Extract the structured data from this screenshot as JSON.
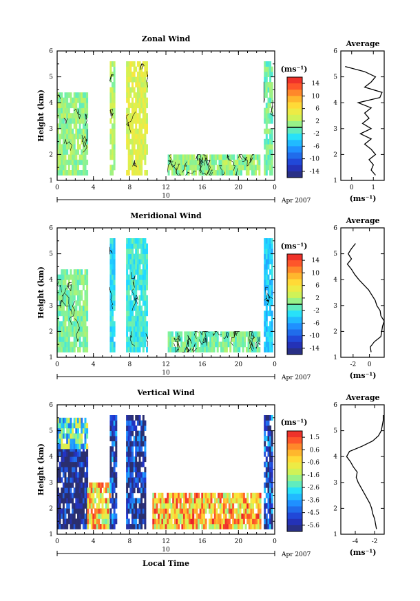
{
  "chart_data": [
    {
      "type": "heatmap",
      "title": "Zonal Wind",
      "xlabel": "",
      "ylabel": "Height (km)",
      "xlim": [
        0,
        24
      ],
      "ylim": [
        1,
        6
      ],
      "x_ticks": [
        "0",
        "4",
        "8",
        "12",
        "16",
        "20",
        "0"
      ],
      "y_ticks": [
        "1",
        "2",
        "3",
        "4",
        "5",
        "6"
      ],
      "date_label": "10",
      "month_label": "Apr 2007",
      "colorbar": {
        "unit": "(ms⁻¹)",
        "ticks": [
          "14",
          "10",
          "6",
          "2",
          "-2",
          "-6",
          "-10",
          "-14"
        ],
        "range": [
          -16,
          16
        ],
        "marker": 0
      },
      "value_range": [
        -8,
        10
      ],
      "data_blocks": [
        {
          "t": [
            0,
            3.3
          ],
          "h": [
            1.2,
            4.3
          ],
          "mean": 1
        },
        {
          "t": [
            5.8,
            6.3
          ],
          "h": [
            1.2,
            5.5
          ],
          "mean": 2
        },
        {
          "t": [
            7.6,
            10.0
          ],
          "h": [
            1.2,
            5.5
          ],
          "mean": 4
        },
        {
          "t": [
            12.2,
            22.4
          ],
          "h": [
            1.2,
            2.0
          ],
          "mean": 1
        },
        {
          "t": [
            22.8,
            23.8
          ],
          "h": [
            1.2,
            5.5
          ],
          "mean": 0
        }
      ],
      "profile": {
        "title": "Average",
        "xlabel": "(ms⁻¹)",
        "xlim": [
          -0.5,
          1.5
        ],
        "x_ticks": [
          "0",
          "1"
        ],
        "y_ticks": [
          "1",
          "2",
          "3",
          "4",
          "5",
          "6"
        ],
        "ylim": [
          1,
          6
        ],
        "height": [
          1.2,
          1.4,
          1.6,
          1.8,
          2.0,
          2.2,
          2.4,
          2.6,
          2.8,
          3.0,
          3.2,
          3.4,
          3.6,
          3.8,
          4.0,
          4.2,
          4.4,
          4.6,
          4.8,
          5.0,
          5.2,
          5.4
        ],
        "wind": [
          1.1,
          0.9,
          1.0,
          0.8,
          1.1,
          0.9,
          0.6,
          0.9,
          0.4,
          0.9,
          0.5,
          0.8,
          0.6,
          0.9,
          0.3,
          1.3,
          1.4,
          0.6,
          0.9,
          1.1,
          0.6,
          -0.3
        ]
      }
    },
    {
      "type": "heatmap",
      "title": "Meridional Wind",
      "xlabel": "",
      "ylabel": "Height (km)",
      "xlim": [
        0,
        24
      ],
      "ylim": [
        1,
        6
      ],
      "x_ticks": [
        "0",
        "4",
        "8",
        "12",
        "16",
        "20",
        "0"
      ],
      "y_ticks": [
        "1",
        "2",
        "3",
        "4",
        "5",
        "6"
      ],
      "date_label": "10",
      "month_label": "Apr 2007",
      "colorbar": {
        "unit": "(ms⁻¹)",
        "ticks": [
          "14",
          "10",
          "6",
          "2",
          "-2",
          "-6",
          "-10",
          "-14"
        ],
        "range": [
          -16,
          16
        ],
        "marker": 0
      },
      "value_range": [
        -8,
        8
      ],
      "data_blocks": [
        {
          "t": [
            0,
            3.3
          ],
          "h": [
            1.2,
            4.3
          ],
          "mean": 0
        },
        {
          "t": [
            5.8,
            6.3
          ],
          "h": [
            1.2,
            5.5
          ],
          "mean": -3
        },
        {
          "t": [
            7.6,
            10.0
          ],
          "h": [
            1.2,
            5.5
          ],
          "mean": -2
        },
        {
          "t": [
            12.2,
            22.4
          ],
          "h": [
            1.2,
            2.0
          ],
          "mean": 0
        },
        {
          "t": [
            22.8,
            23.8
          ],
          "h": [
            1.2,
            5.5
          ],
          "mean": -4
        }
      ],
      "profile": {
        "title": "Average",
        "xlabel": "(ms⁻¹)",
        "xlim": [
          -3.5,
          1.8
        ],
        "x_ticks": [
          "-2",
          "0"
        ],
        "y_ticks": [
          "1",
          "2",
          "3",
          "4",
          "5",
          "6"
        ],
        "ylim": [
          1,
          6
        ],
        "height": [
          1.2,
          1.4,
          1.6,
          1.8,
          2.0,
          2.2,
          2.4,
          2.6,
          2.8,
          3.0,
          3.2,
          3.4,
          3.6,
          3.8,
          4.0,
          4.2,
          4.4,
          4.6,
          4.8,
          5.0,
          5.2,
          5.4
        ],
        "wind": [
          0.2,
          0.1,
          0.6,
          1.4,
          1.5,
          1.6,
          1.8,
          1.4,
          1.3,
          0.9,
          0.7,
          0.3,
          -0.1,
          -0.7,
          -1.3,
          -1.8,
          -2.2,
          -2.7,
          -2.2,
          -2.6,
          -2.2,
          -1.7
        ]
      }
    },
    {
      "type": "heatmap",
      "title": "Vertical Wind",
      "xlabel": "Local Time",
      "ylabel": "Height (km)",
      "xlim": [
        0,
        24
      ],
      "ylim": [
        1,
        6
      ],
      "x_ticks": [
        "0",
        "4",
        "8",
        "12",
        "16",
        "20",
        "0"
      ],
      "y_ticks": [
        "1",
        "2",
        "3",
        "4",
        "5",
        "6"
      ],
      "date_label": "10",
      "month_label": "Apr 2007",
      "colorbar": {
        "unit": "(ms⁻¹)",
        "ticks": [
          "1.5",
          "0.6",
          "-0.6",
          "-1.6",
          "-2.6",
          "-3.6",
          "-4.5",
          "-5.6"
        ],
        "range": [
          -6.2,
          2.0
        ],
        "marker": null
      },
      "value_range": [
        -6,
        0
      ],
      "data_blocks": [
        {
          "t": [
            0,
            3.3
          ],
          "h": [
            1.2,
            4.3
          ],
          "mean": -6.2
        },
        {
          "t": [
            0,
            3.3
          ],
          "h": [
            4.3,
            5.5
          ],
          "mean": -2.5
        },
        {
          "t": [
            3.3,
            5.8
          ],
          "h": [
            1.2,
            3.0
          ],
          "mean": -0.3
        },
        {
          "t": [
            5.8,
            6.6
          ],
          "h": [
            1.2,
            5.5
          ],
          "mean": -5.0
        },
        {
          "t": [
            7.6,
            9.8
          ],
          "h": [
            1.2,
            5.5
          ],
          "mean": -5.5
        },
        {
          "t": [
            10.5,
            22.5
          ],
          "h": [
            1.2,
            2.5
          ],
          "mean": 0.0
        },
        {
          "t": [
            22.8,
            23.8
          ],
          "h": [
            1.2,
            5.5
          ],
          "mean": -5.0
        }
      ],
      "profile": {
        "title": "Average",
        "xlabel": "(ms⁻¹)",
        "xlim": [
          -5.5,
          -1.0
        ],
        "x_ticks": [
          "-4",
          "-2"
        ],
        "y_ticks": [
          "1",
          "2",
          "3",
          "4",
          "5",
          "6"
        ],
        "ylim": [
          1,
          6
        ],
        "height": [
          1.2,
          1.4,
          1.6,
          1.8,
          2.0,
          2.2,
          2.4,
          2.6,
          2.8,
          3.0,
          3.2,
          3.4,
          3.6,
          3.8,
          4.0,
          4.2,
          4.4,
          4.6,
          4.8,
          5.0,
          5.2,
          5.4,
          5.6
        ],
        "wind": [
          -1.8,
          -1.9,
          -2.0,
          -2.2,
          -2.3,
          -2.5,
          -2.8,
          -3.1,
          -3.4,
          -3.7,
          -3.9,
          -3.8,
          -4.2,
          -4.5,
          -4.9,
          -4.6,
          -3.3,
          -2.2,
          -1.6,
          -1.3,
          -1.2,
          -1.1,
          -1.1
        ]
      }
    }
  ]
}
